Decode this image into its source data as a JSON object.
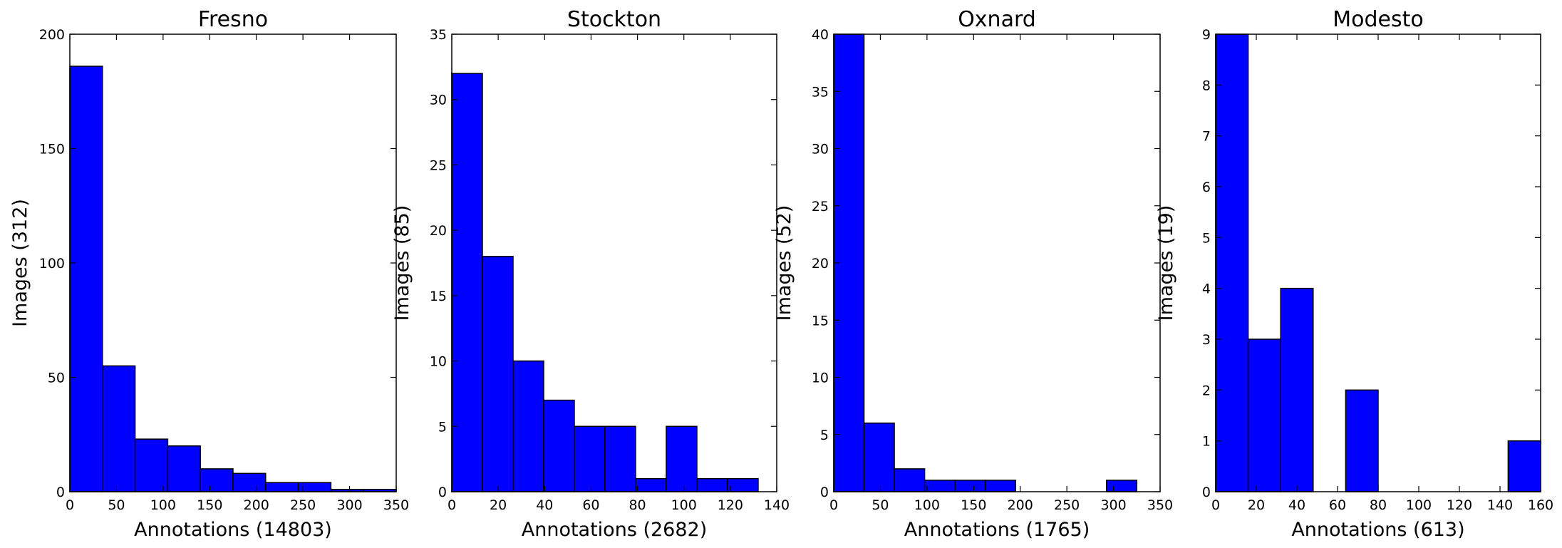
{
  "colors": {
    "bar": "#0000ff",
    "edge": "#000000",
    "background": "#ffffff"
  },
  "chart_data": [
    {
      "type": "bar",
      "title": "Fresno",
      "xlabel": "Annotations (14803)",
      "ylabel": "Images (312)",
      "xlim": [
        0,
        350
      ],
      "ylim": [
        0,
        200
      ],
      "xticks": [
        0,
        50,
        100,
        150,
        200,
        250,
        300,
        350
      ],
      "yticks": [
        0,
        50,
        100,
        150,
        200
      ],
      "bins": [
        {
          "x0": 0,
          "x1": 35,
          "value": 186
        },
        {
          "x0": 35,
          "x1": 70,
          "value": 55
        },
        {
          "x0": 70,
          "x1": 105,
          "value": 23
        },
        {
          "x0": 105,
          "x1": 140,
          "value": 20
        },
        {
          "x0": 140,
          "x1": 175,
          "value": 10
        },
        {
          "x0": 175,
          "x1": 210,
          "value": 8
        },
        {
          "x0": 210,
          "x1": 245,
          "value": 4
        },
        {
          "x0": 245,
          "x1": 280,
          "value": 4
        },
        {
          "x0": 280,
          "x1": 315,
          "value": 1
        },
        {
          "x0": 315,
          "x1": 350,
          "value": 1
        }
      ]
    },
    {
      "type": "bar",
      "title": "Stockton",
      "xlabel": "Annotations (2682)",
      "ylabel": "Images (85)",
      "xlim": [
        0,
        140
      ],
      "ylim": [
        0,
        35
      ],
      "xticks": [
        0,
        20,
        40,
        60,
        80,
        100,
        120,
        140
      ],
      "yticks": [
        0,
        5,
        10,
        15,
        20,
        25,
        30,
        35
      ],
      "bins": [
        {
          "x0": 0,
          "x1": 13.2,
          "value": 32
        },
        {
          "x0": 13.2,
          "x1": 26.4,
          "value": 18
        },
        {
          "x0": 26.4,
          "x1": 39.6,
          "value": 10
        },
        {
          "x0": 39.6,
          "x1": 52.8,
          "value": 7
        },
        {
          "x0": 52.8,
          "x1": 66,
          "value": 5
        },
        {
          "x0": 66,
          "x1": 79.2,
          "value": 5
        },
        {
          "x0": 79.2,
          "x1": 92.4,
          "value": 1
        },
        {
          "x0": 92.4,
          "x1": 105.6,
          "value": 5
        },
        {
          "x0": 105.6,
          "x1": 118.8,
          "value": 1
        },
        {
          "x0": 118.8,
          "x1": 132,
          "value": 1
        }
      ]
    },
    {
      "type": "bar",
      "title": "Oxnard",
      "xlabel": "Annotations (1765)",
      "ylabel": "Images (52)",
      "xlim": [
        0,
        350
      ],
      "ylim": [
        0,
        40
      ],
      "xticks": [
        0,
        50,
        100,
        150,
        200,
        250,
        300,
        350
      ],
      "yticks": [
        0,
        5,
        10,
        15,
        20,
        25,
        30,
        35,
        40
      ],
      "bins": [
        {
          "x0": 0,
          "x1": 32.5,
          "value": 40
        },
        {
          "x0": 32.5,
          "x1": 65,
          "value": 6
        },
        {
          "x0": 65,
          "x1": 97.5,
          "value": 2
        },
        {
          "x0": 97.5,
          "x1": 130,
          "value": 1
        },
        {
          "x0": 130,
          "x1": 162.5,
          "value": 1
        },
        {
          "x0": 162.5,
          "x1": 195,
          "value": 1
        },
        {
          "x0": 195,
          "x1": 227.5,
          "value": 0
        },
        {
          "x0": 227.5,
          "x1": 260,
          "value": 0
        },
        {
          "x0": 260,
          "x1": 292.5,
          "value": 0
        },
        {
          "x0": 292.5,
          "x1": 325,
          "value": 1
        }
      ]
    },
    {
      "type": "bar",
      "title": "Modesto",
      "xlabel": "Annotations (613)",
      "ylabel": "Images (19)",
      "xlim": [
        0,
        160
      ],
      "ylim": [
        0,
        9
      ],
      "xticks": [
        0,
        20,
        40,
        60,
        80,
        100,
        120,
        140,
        160
      ],
      "yticks": [
        0,
        1,
        2,
        3,
        4,
        5,
        6,
        7,
        8,
        9
      ],
      "bins": [
        {
          "x0": 0,
          "x1": 16,
          "value": 9
        },
        {
          "x0": 16,
          "x1": 32,
          "value": 3
        },
        {
          "x0": 32,
          "x1": 48,
          "value": 4
        },
        {
          "x0": 48,
          "x1": 64,
          "value": 0
        },
        {
          "x0": 64,
          "x1": 80,
          "value": 2
        },
        {
          "x0": 80,
          "x1": 96,
          "value": 0
        },
        {
          "x0": 96,
          "x1": 112,
          "value": 0
        },
        {
          "x0": 112,
          "x1": 128,
          "value": 0
        },
        {
          "x0": 128,
          "x1": 144,
          "value": 0
        },
        {
          "x0": 144,
          "x1": 160,
          "value": 1
        }
      ]
    }
  ]
}
